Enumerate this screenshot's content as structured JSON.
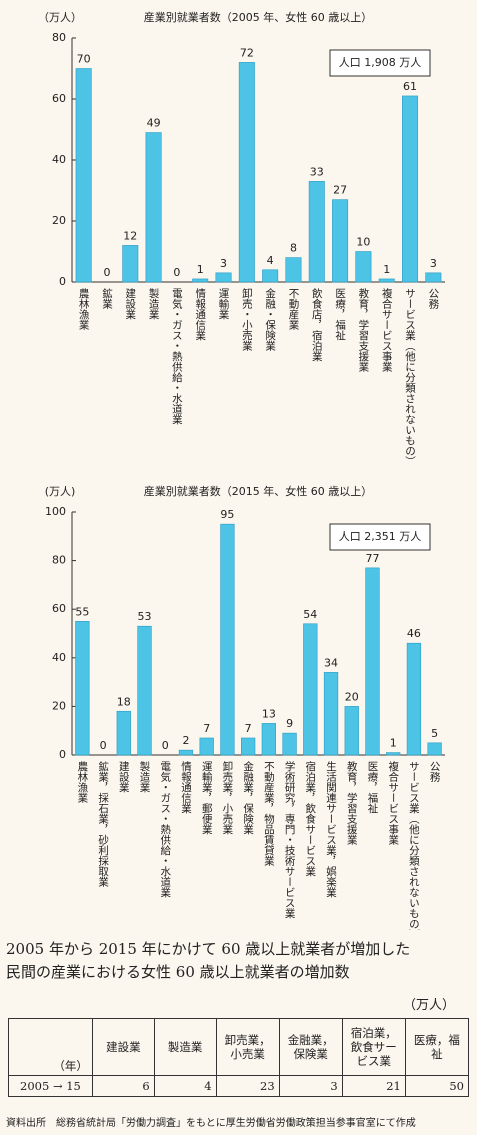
{
  "chart_data": [
    {
      "type": "bar",
      "title": "産業別就業者数（2005 年、女性 60 歳以上）",
      "y_label": "（万人）",
      "annotation": "人口 1,908 万人",
      "categories": [
        "農林漁業",
        "鉱業",
        "建設業",
        "製造業",
        "電気・ガス・熱供給・水道業",
        "情報通信業",
        "運輸業",
        "卸売・小売業",
        "金融・保険業",
        "不動産業",
        "飲食店，宿泊業",
        "医療，福祉",
        "教育，学習支援業",
        "複合サービス事業",
        "サービス業（他に分類されないもの）",
        "公務"
      ],
      "values": [
        70,
        0,
        12,
        49,
        0,
        1,
        3,
        72,
        4,
        8,
        33,
        27,
        10,
        1,
        61,
        3
      ],
      "color": "#4dc3e6",
      "ylim": [
        0,
        80
      ],
      "yticks": [
        0,
        20,
        40,
        60,
        80
      ]
    },
    {
      "type": "bar",
      "title": "産業別就業者数（2015 年、女性 60 歳以上）",
      "y_label": "(万人)",
      "annotation": "人口 2,351 万人",
      "categories": [
        "農林漁業",
        "鉱業，採石業，砂利採取業",
        "建設業",
        "製造業",
        "電気・ガス・熱供給・水道業",
        "情報通信業",
        "運輸業，郵便業",
        "卸売業，小売業",
        "金融業，保険業",
        "不動産業，物品賃貸業",
        "学術研究，専門・技術サービス業",
        "宿泊業，飲食サービス業",
        "生活関連サービス業，娯楽業",
        "教育，学習支援業",
        "医療，福祉",
        "複合サービス事業",
        "サービス業（他に分類されないもの）",
        "公務"
      ],
      "values": [
        55,
        0,
        18,
        53,
        0,
        2,
        7,
        95,
        7,
        13,
        9,
        54,
        34,
        20,
        77,
        1,
        46,
        5
      ],
      "color": "#4dc3e6",
      "ylim": [
        0,
        100
      ],
      "yticks": [
        0,
        20,
        40,
        60,
        80,
        100
      ]
    }
  ],
  "caption": [
    "2005 年から 2015 年にかけて 60 歳以上就業者が増加した",
    "民間の産業における女性 60 歳以上就業者の増加数"
  ],
  "table": {
    "unit": "（万人）",
    "corner": "（年）",
    "columns": [
      "建設業",
      "製造業",
      "卸売業，小売業",
      "金融業，保険業",
      "宿泊業，飲食サービス業",
      "医療，福祉"
    ],
    "rows": [
      [
        "2005 → 15",
        "6",
        "4",
        "23",
        "3",
        "21",
        "50"
      ]
    ]
  },
  "source": "資料出所　総務省統計局「労働力調査」をもとに厚生労働省労働政策担当参事官室にて作成"
}
